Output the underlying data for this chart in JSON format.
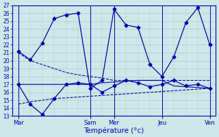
{
  "background_color": "#cce8e8",
  "grid_color": "#aacccc",
  "line_color": "#0000aa",
  "xlabel": "Température (°c)",
  "ylim": [
    13,
    27
  ],
  "yticks": [
    13,
    14,
    15,
    16,
    17,
    18,
    19,
    20,
    21,
    22,
    23,
    24,
    25,
    26,
    27
  ],
  "num_points": 17,
  "day_tick_positions": [
    0,
    6,
    8,
    12,
    16
  ],
  "day_labels": [
    "Mar",
    "Sam",
    "Mer",
    "Jeu",
    "Ven"
  ],
  "vline_positions": [
    0,
    6,
    8,
    12,
    16
  ],
  "series": [
    {
      "x": [
        0,
        1,
        2,
        3,
        4,
        5,
        6,
        7,
        8,
        9,
        10,
        11,
        12,
        13,
        14,
        15,
        16
      ],
      "y": [
        21.2,
        20.1,
        22.2,
        25.3,
        25.8,
        26.0,
        16.5,
        17.5,
        26.5,
        24.5,
        24.2,
        19.5,
        18.0,
        20.5,
        24.8,
        26.7,
        22.0
      ],
      "marker": "D",
      "markersize": 2.5,
      "linestyle": "-",
      "linewidth": 0.9
    },
    {
      "x": [
        0,
        1,
        2,
        3,
        4,
        5,
        6,
        7,
        8,
        9,
        10,
        11,
        12,
        13,
        14,
        15,
        16
      ],
      "y": [
        17.0,
        14.5,
        13.2,
        15.2,
        17.0,
        17.2,
        17.0,
        16.0,
        16.8,
        17.5,
        17.2,
        16.7,
        17.0,
        17.5,
        16.8,
        17.0,
        16.5
      ],
      "marker": "D",
      "markersize": 2.5,
      "linestyle": "-",
      "linewidth": 0.9
    },
    {
      "x": [
        0,
        1,
        2,
        3,
        4,
        5,
        6,
        7,
        8,
        9,
        10,
        11,
        12,
        13,
        14,
        15,
        16
      ],
      "y": [
        21.0,
        20.0,
        19.5,
        19.0,
        18.5,
        18.2,
        18.0,
        17.8,
        17.5,
        17.5,
        17.5,
        17.5,
        17.5,
        17.5,
        17.5,
        17.5,
        17.5
      ],
      "marker": null,
      "markersize": 0,
      "linestyle": "--",
      "linewidth": 0.8
    },
    {
      "x": [
        0,
        1,
        2,
        3,
        4,
        5,
        6,
        7,
        8,
        9,
        10,
        11,
        12,
        13,
        14,
        15,
        16
      ],
      "y": [
        14.5,
        14.8,
        15.0,
        15.2,
        15.3,
        15.4,
        15.5,
        15.6,
        15.7,
        15.8,
        15.9,
        16.0,
        16.1,
        16.2,
        16.3,
        16.4,
        16.5
      ],
      "marker": null,
      "markersize": 0,
      "linestyle": "--",
      "linewidth": 0.8
    },
    {
      "x": [
        0,
        1,
        2,
        3,
        4,
        5,
        6,
        7,
        8,
        9,
        10,
        11,
        12,
        13,
        14,
        15,
        16
      ],
      "y": [
        17.0,
        17.0,
        17.0,
        17.0,
        17.0,
        17.0,
        17.0,
        17.2,
        17.3,
        17.4,
        17.5,
        17.5,
        17.5,
        16.8,
        16.7,
        16.6,
        16.5
      ],
      "marker": null,
      "markersize": 0,
      "linestyle": "-",
      "linewidth": 0.8
    }
  ]
}
